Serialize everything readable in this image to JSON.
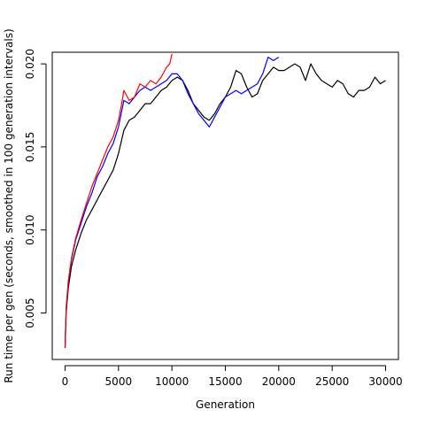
{
  "chart_data": {
    "type": "line",
    "title": "",
    "xlabel": "Generation",
    "ylabel": "Run time per gen (seconds, smoothed in 100 generation intervals)",
    "xlim": [
      -1200,
      31200
    ],
    "ylim": [
      0.0022,
      0.0207
    ],
    "x_ticks": [
      0,
      5000,
      10000,
      15000,
      20000,
      25000,
      30000
    ],
    "x_tick_labels": [
      "0",
      "5000",
      "10000",
      "15000",
      "20000",
      "25000",
      "30000"
    ],
    "y_ticks": [
      0.005,
      0.01,
      0.015,
      0.02
    ],
    "y_tick_labels": [
      "0.005",
      "0.010",
      "0.015",
      "0.020"
    ],
    "grid": false,
    "legend": "none",
    "series": [
      {
        "color": "#000000",
        "x": [
          0,
          100,
          300,
          600,
          1000,
          1500,
          2000,
          2500,
          3000,
          3500,
          4000,
          4500,
          5000,
          5500,
          6000,
          6500,
          7000,
          7500,
          8000,
          8500,
          9000,
          9500,
          10000,
          10500,
          11000,
          11500,
          12000,
          12500,
          13000,
          13500,
          14000,
          14500,
          15000,
          15500,
          16000,
          16500,
          17000,
          17500,
          18000,
          18500,
          19000,
          19500,
          20000,
          20500,
          21000,
          21500,
          22000,
          22500,
          23000,
          23500,
          24000,
          24500,
          25000,
          25500,
          26000,
          26500,
          27000,
          27500,
          28000,
          28500,
          29000,
          29500,
          30000
        ],
        "y": [
          0.0029,
          0.005,
          0.0065,
          0.0078,
          0.0088,
          0.0098,
          0.0106,
          0.0112,
          0.0118,
          0.0124,
          0.013,
          0.0136,
          0.0146,
          0.016,
          0.0166,
          0.0168,
          0.0172,
          0.0176,
          0.0176,
          0.018,
          0.0184,
          0.0186,
          0.019,
          0.0192,
          0.019,
          0.0184,
          0.0176,
          0.0172,
          0.0168,
          0.0166,
          0.017,
          0.0176,
          0.018,
          0.0186,
          0.0196,
          0.0194,
          0.0186,
          0.018,
          0.0182,
          0.019,
          0.0194,
          0.0198,
          0.0196,
          0.0196,
          0.0198,
          0.02,
          0.0198,
          0.019,
          0.02,
          0.0194,
          0.019,
          0.0188,
          0.0186,
          0.019,
          0.0188,
          0.0182,
          0.018,
          0.0184,
          0.0184,
          0.0186,
          0.0192,
          0.0188,
          0.019
        ]
      },
      {
        "color": "#0000ff",
        "x": [
          0,
          100,
          300,
          600,
          1000,
          1500,
          2000,
          2500,
          3000,
          3500,
          4000,
          4500,
          5000,
          5500,
          6000,
          6500,
          7000,
          7500,
          8000,
          8500,
          9000,
          9500,
          10000,
          10500,
          11000,
          11500,
          12000,
          12500,
          13000,
          13500,
          14000,
          14500,
          15000,
          15500,
          16000,
          16500,
          17000,
          17500,
          18000,
          18500,
          19000,
          19500,
          20000
        ],
        "y": [
          0.0029,
          0.0052,
          0.0068,
          0.0082,
          0.0094,
          0.0104,
          0.0114,
          0.0122,
          0.0132,
          0.0138,
          0.0146,
          0.0152,
          0.0162,
          0.0178,
          0.0176,
          0.018,
          0.0184,
          0.0186,
          0.0184,
          0.0186,
          0.0188,
          0.019,
          0.0194,
          0.0194,
          0.019,
          0.0182,
          0.0176,
          0.017,
          0.0166,
          0.0162,
          0.0168,
          0.0174,
          0.018,
          0.0182,
          0.0184,
          0.0182,
          0.0184,
          0.0186,
          0.0188,
          0.0194,
          0.0204,
          0.0202,
          0.0204
        ]
      },
      {
        "color": "#ff0000",
        "x": [
          0,
          100,
          300,
          600,
          1000,
          1500,
          2000,
          2500,
          3000,
          3500,
          4000,
          4500,
          5000,
          5300,
          5500,
          6000,
          6500,
          7000,
          7500,
          8000,
          8500,
          9000,
          9500,
          9800,
          10000
        ],
        "y": [
          0.0029,
          0.0053,
          0.0069,
          0.0083,
          0.0095,
          0.0106,
          0.0116,
          0.0126,
          0.0134,
          0.0142,
          0.015,
          0.0156,
          0.0166,
          0.0176,
          0.0184,
          0.0178,
          0.018,
          0.0188,
          0.0186,
          0.019,
          0.0188,
          0.0192,
          0.0198,
          0.02,
          0.0206
        ]
      }
    ]
  }
}
